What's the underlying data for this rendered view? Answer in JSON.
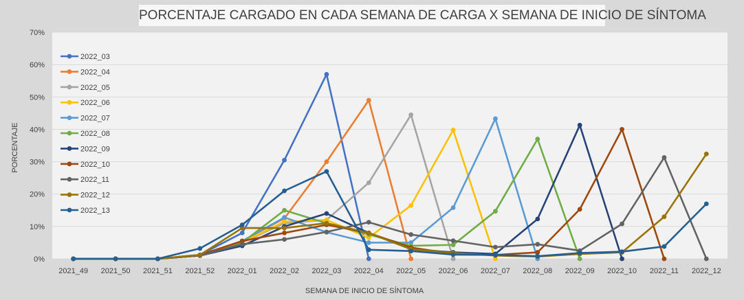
{
  "chart_data": {
    "type": "line",
    "title": "PORCENTAJE CARGADO EN CADA SEMANA DE CARGA X SEMANA DE INICIO DE SÍNTOMA",
    "xlabel": "SEMANA  DE  INICIO DE SÍNTOMA",
    "ylabel": "PORCENTAJE",
    "ylim": [
      0,
      70
    ],
    "yticks": [
      "0%",
      "10%",
      "20%",
      "30%",
      "40%",
      "50%",
      "60%",
      "70%"
    ],
    "categories": [
      "2021_49",
      "2021_50",
      "2021_51",
      "2021_52",
      "2022_01",
      "2022_02",
      "2022_03",
      "2022_04",
      "2022_05",
      "2022_06",
      "2022_07",
      "2022_08",
      "2022_09",
      "2022_10",
      "2022_11",
      "2022_12"
    ],
    "legend_position": "top-left",
    "grid": true,
    "series": [
      {
        "name": "2022_03",
        "color": "#4472c4",
        "values": [
          0,
          0,
          0,
          1.2,
          8.0,
          30.5,
          57.0,
          0,
          null,
          null,
          null,
          null,
          null,
          null,
          null,
          null
        ]
      },
      {
        "name": "2022_04",
        "color": "#ed7d31",
        "values": [
          0,
          0,
          0,
          1.0,
          5.5,
          12.5,
          30.0,
          49.0,
          0,
          null,
          null,
          null,
          null,
          null,
          null,
          null
        ]
      },
      {
        "name": "2022_05",
        "color": "#a5a5a5",
        "values": [
          0,
          0,
          0,
          1.0,
          5.0,
          11.0,
          12.0,
          23.5,
          44.5,
          0,
          null,
          null,
          null,
          null,
          null,
          null
        ]
      },
      {
        "name": "2022_06",
        "color": "#ffc000",
        "values": [
          0,
          0,
          0,
          1.0,
          5.0,
          11.5,
          12.0,
          6.5,
          16.5,
          39.8,
          0,
          null,
          null,
          null,
          null,
          null
        ]
      },
      {
        "name": "2022_07",
        "color": "#5b9bd5",
        "values": [
          0,
          0,
          0,
          1.0,
          5.5,
          12.8,
          8.2,
          5.0,
          5.0,
          15.8,
          43.3,
          0,
          null,
          null,
          null,
          null
        ]
      },
      {
        "name": "2022_08",
        "color": "#70ad47",
        "values": [
          0,
          0,
          0,
          1.2,
          5.0,
          15.0,
          11.0,
          7.5,
          4.0,
          4.3,
          14.7,
          37.0,
          0,
          null,
          null,
          null
        ]
      },
      {
        "name": "2022_09",
        "color": "#264478",
        "values": [
          0,
          0,
          0,
          1.0,
          4.0,
          10.0,
          14.0,
          8.0,
          3.0,
          2.0,
          1.5,
          12.3,
          41.3,
          0,
          null,
          null
        ]
      },
      {
        "name": "2022_10",
        "color": "#9e480e",
        "values": [
          0,
          0,
          0,
          1.2,
          5.5,
          8.0,
          10.5,
          8.0,
          3.5,
          1.5,
          1.2,
          2.0,
          15.3,
          40.0,
          0,
          null
        ]
      },
      {
        "name": "2022_11",
        "color": "#636363",
        "values": [
          0,
          0,
          0,
          1.0,
          4.5,
          6.0,
          8.3,
          11.3,
          7.5,
          5.6,
          3.6,
          4.5,
          2.5,
          10.8,
          31.3,
          0
        ]
      },
      {
        "name": "2022_12",
        "color": "#997300",
        "values": [
          0,
          0,
          0,
          1.2,
          9.5,
          9.5,
          11.0,
          8.0,
          3.0,
          1.8,
          1.0,
          0.7,
          1.5,
          2.0,
          13.0,
          32.4
        ]
      },
      {
        "name": "2022_13",
        "color": "#255e91",
        "values": [
          0,
          0,
          0,
          3.2,
          10.5,
          21.0,
          27.0,
          2.8,
          2.4,
          1.3,
          1.2,
          0.8,
          1.8,
          2.2,
          3.8,
          17.0
        ]
      }
    ]
  }
}
